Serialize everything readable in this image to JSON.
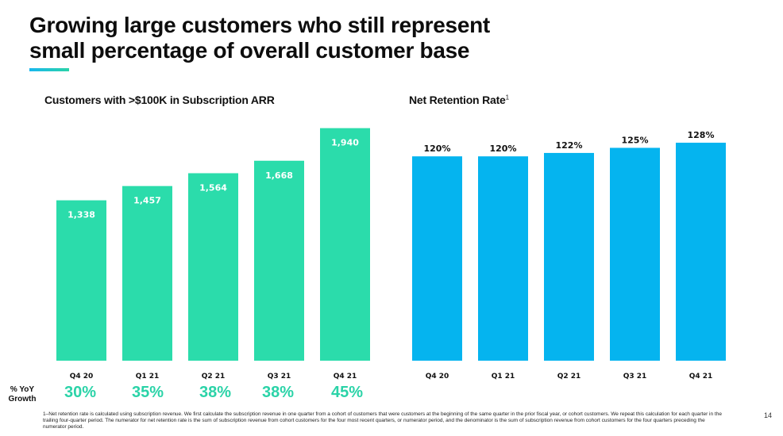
{
  "slide": {
    "title_line1": "Growing large customers who still represent",
    "title_line2": "small percentage of overall customer base",
    "accent_colors": [
      "#18b7ee",
      "#2bd3a8"
    ],
    "page_number": "14",
    "footnote": "1–Net retention rate is calculated using subscription revenue. We first calculate the subscription revenue in one quarter from a cohort of customers that were customers at the beginning of the same quarter in the prior fiscal year, or cohort customers. We repeat this calculation for each quarter in the trailing four-quarter period. The numerator for net retention rate is the sum of subscription revenue from cohort customers for the four most recent quarters, or numerator period, and the denominator is the sum of subscription revenue from cohort customers for the four quarters preceding the numerator period."
  },
  "yoy": {
    "label_line1": "% YoY",
    "label_line2": "Growth",
    "values": [
      "30%",
      "35%",
      "38%",
      "38%",
      "45%"
    ]
  },
  "chart_data": [
    {
      "type": "bar",
      "title": "Customers with >$100K in Subscription ARR",
      "categories": [
        "Q4 20",
        "Q1 21",
        "Q2 21",
        "Q3 21",
        "Q4 21"
      ],
      "values": [
        1338,
        1457,
        1564,
        1668,
        1940
      ],
      "labels": [
        "1,338",
        "1,457",
        "1,564",
        "1,668",
        "1,940"
      ],
      "ylim": [
        0,
        2050
      ],
      "color": "#2bdcab",
      "label_color": "#ffffff",
      "grid": false,
      "legend": "none"
    },
    {
      "type": "bar",
      "title": "Net Retention Rate",
      "title_superscript": "1",
      "categories": [
        "Q4 20",
        "Q1 21",
        "Q2 21",
        "Q3 21",
        "Q4 21"
      ],
      "values": [
        120,
        120,
        122,
        125,
        128
      ],
      "labels": [
        "120%",
        "120%",
        "122%",
        "125%",
        "128%"
      ],
      "unit": "%",
      "ylim": [
        0,
        135
      ],
      "color": "#05b4ef",
      "label_color": "#111111",
      "grid": false,
      "legend": "none"
    }
  ]
}
